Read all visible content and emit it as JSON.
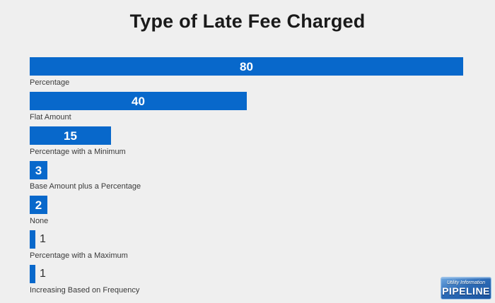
{
  "page": {
    "background_color": "#efefef"
  },
  "chart_data": {
    "type": "bar",
    "orientation": "horizontal",
    "title": "Type of Late Fee Charged",
    "categories": [
      "Percentage",
      "Flat Amount",
      "Percentage with a Minimum",
      "Base Amount plus a Percentage",
      "None",
      "Percentage with a Maximum",
      "Increasing Based on Frequency"
    ],
    "values": [
      80,
      40,
      15,
      3,
      2,
      1,
      1
    ],
    "xlim": [
      0,
      80
    ],
    "grid": false,
    "legend": false,
    "bar_color": "#0868cb",
    "value_label_inside_color": "#ffffff",
    "value_label_outside_color": "#2f2f2f",
    "category_label_color": "#3a3a3a",
    "title_color": "#1a1a1a"
  },
  "logo": {
    "line1": "Utility Information",
    "line2": "PIPELINE"
  }
}
